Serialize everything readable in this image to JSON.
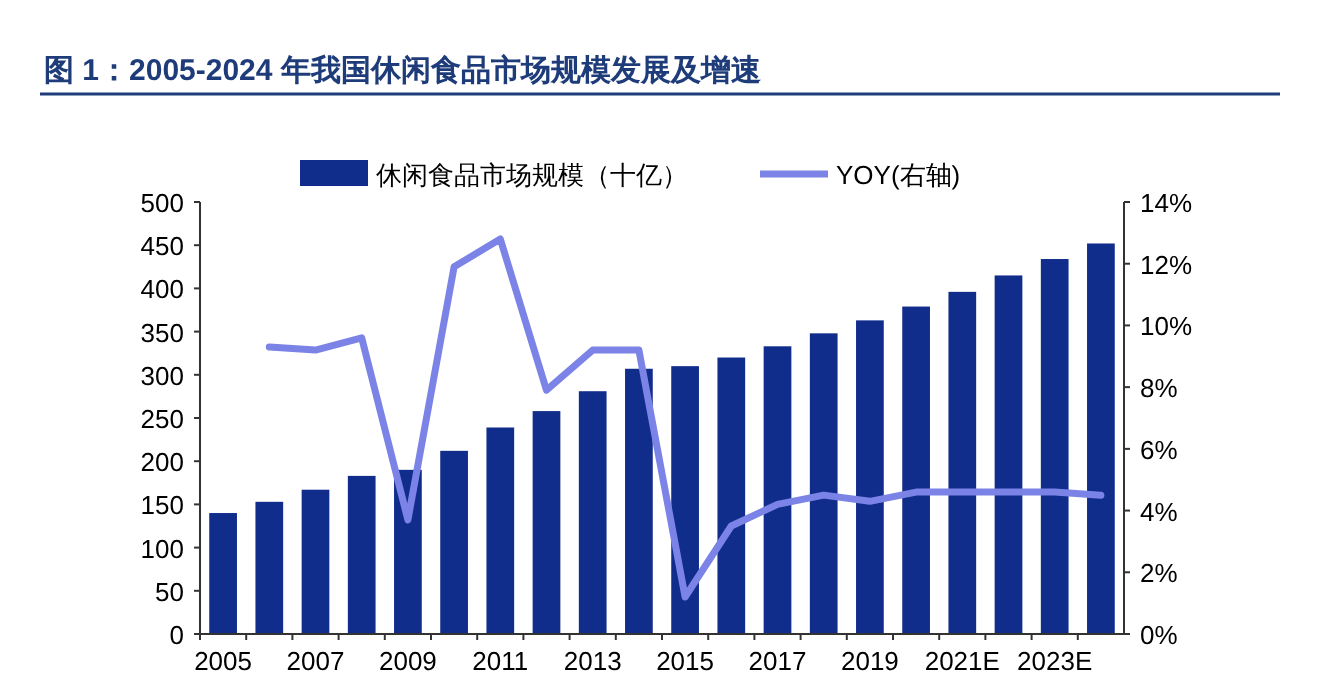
{
  "chart_data": {
    "type": "bar",
    "title": "图 1：2005-2024 年我国休闲食品市场规模发展及增速",
    "categories": [
      "2005",
      null,
      "2007",
      null,
      "2009",
      null,
      "2011",
      null,
      "2013",
      null,
      "2015",
      null,
      "2017",
      null,
      "2019",
      null,
      "2021E",
      null,
      "2023E",
      null
    ],
    "series": [
      {
        "name": "休闲食品市场规模（十亿）",
        "color": "#112d8c",
        "values": [
          140,
          153,
          167,
          183,
          190,
          212,
          239,
          258,
          281,
          307,
          310,
          320,
          333,
          348,
          363,
          379,
          396,
          415,
          434,
          452
        ]
      },
      {
        "name": "YOY(右轴)",
        "type": "line",
        "axis": "y2",
        "color": "#7b83e6",
        "values": [
          null,
          9.3,
          9.2,
          9.6,
          3.7,
          11.9,
          12.8,
          7.9,
          9.2,
          9.2,
          1.2,
          3.5,
          4.2,
          4.5,
          4.3,
          4.6,
          4.6,
          4.6,
          4.6,
          4.5
        ]
      }
    ],
    "ylim": [
      0,
      500
    ],
    "yticks": [
      0,
      50,
      100,
      150,
      200,
      250,
      300,
      350,
      400,
      450,
      500
    ],
    "y2lim": [
      0,
      14
    ],
    "y2ticks": [
      {
        "value": 0,
        "label": "0%"
      },
      {
        "value": 2,
        "label": "2%"
      },
      {
        "value": 4,
        "label": "4%"
      },
      {
        "value": 6,
        "label": "6%"
      },
      {
        "value": 8,
        "label": "8%"
      },
      {
        "value": 10,
        "label": "10%"
      },
      {
        "value": 12,
        "label": "12%"
      },
      {
        "value": 14,
        "label": "14%"
      }
    ],
    "legend": "top",
    "grid": false
  }
}
